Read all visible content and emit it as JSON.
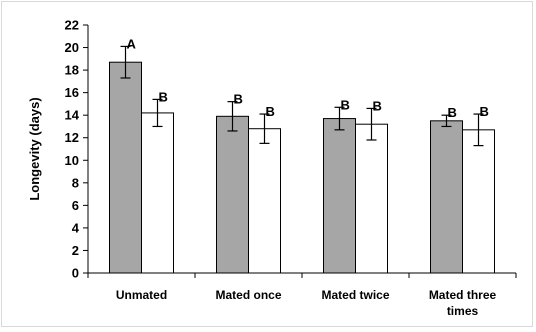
{
  "chart_data": {
    "type": "bar",
    "title": "",
    "xlabel": "",
    "ylabel": "Longevity (days)",
    "ylim": [
      0,
      22
    ],
    "yticks": [
      0,
      2,
      4,
      6,
      8,
      10,
      12,
      14,
      16,
      18,
      20,
      22
    ],
    "grid": false,
    "legend": "none",
    "categories": [
      [
        "Unmated"
      ],
      [
        "Mated once"
      ],
      [
        "Mated twice"
      ],
      [
        "Mated three",
        "times"
      ]
    ],
    "series": [
      {
        "fill": "#a6a6a6",
        "values": [
          18.7,
          13.9,
          13.7,
          13.5
        ],
        "errors": [
          1.4,
          1.3,
          1.0,
          0.5
        ],
        "labels": [
          "A",
          "B",
          "B",
          "B"
        ]
      },
      {
        "fill": "#ffffff",
        "values": [
          14.2,
          12.8,
          13.2,
          12.7
        ],
        "errors": [
          1.2,
          1.3,
          1.4,
          1.4
        ],
        "labels": [
          "B",
          "B",
          "B",
          "B"
        ]
      }
    ]
  }
}
